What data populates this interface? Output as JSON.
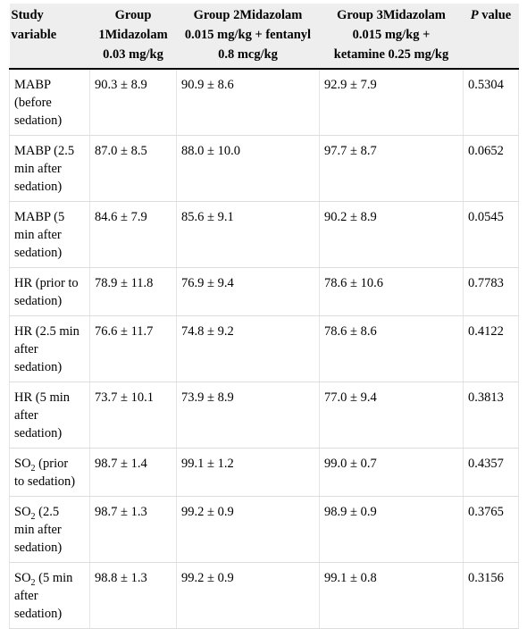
{
  "headers": [
    {
      "lines": [
        "Study",
        "variable"
      ]
    },
    {
      "lines": [
        "Group",
        "1Midazolam",
        "0.03 mg/kg"
      ]
    },
    {
      "lines": [
        "Group 2Midazolam",
        "0.015 mg/kg + fentanyl",
        "0.8 mcg/kg"
      ]
    },
    {
      "lines": [
        "Group 3Midazolam",
        "0.015 mg/kg +",
        "ketamine 0.25 mg/kg"
      ]
    },
    {
      "p_letter": "P",
      "rest": " value"
    }
  ],
  "rows": [
    {
      "variable": {
        "lines": [
          "MABP",
          "(before",
          "sedation)"
        ]
      },
      "g1": "90.3 ± 8.9",
      "g2": "90.9 ± 8.6",
      "g3": "92.9 ± 7.9",
      "p": "0.5304"
    },
    {
      "variable": {
        "lines": [
          "MABP (2.5",
          "min after",
          "sedation)"
        ]
      },
      "g1": "87.0 ± 8.5",
      "g2": "88.0 ± 10.0",
      "g3": "97.7 ± 8.7",
      "p": "0.0652"
    },
    {
      "variable": {
        "lines": [
          "MABP (5",
          "min after",
          "sedation)"
        ]
      },
      "g1": "84.6 ± 7.9",
      "g2": "85.6 ± 9.1",
      "g3": "90.2 ± 8.9",
      "p": "0.0545"
    },
    {
      "variable": {
        "lines": [
          "HR (prior to",
          "sedation)"
        ]
      },
      "g1": "78.9 ± 11.8",
      "g2": "76.9 ± 9.4",
      "g3": "78.6 ± 10.6",
      "p": "0.7783"
    },
    {
      "variable": {
        "lines": [
          "HR (2.5 min",
          "after",
          "sedation)"
        ]
      },
      "g1": "76.6 ± 11.7",
      "g2": "74.8 ± 9.2",
      "g3": "78.6 ± 8.6",
      "p": "0.4122"
    },
    {
      "variable": {
        "lines": [
          "HR (5 min",
          "after",
          "sedation)"
        ]
      },
      "g1": "73.7 ± 10.1",
      "g2": "73.9 ± 8.9",
      "g3": "77.0 ± 9.4",
      "p": "0.3813"
    },
    {
      "variable": {
        "so2": true,
        "base": "SO",
        "sub": "2",
        "first_rest": " (prior",
        "lines": [
          "to sedation)"
        ]
      },
      "g1": "98.7 ± 1.4",
      "g2": "99.1 ± 1.2",
      "g3": "99.0 ± 0.7",
      "p": "0.4357"
    },
    {
      "variable": {
        "so2": true,
        "base": "SO",
        "sub": "2",
        "first_rest": " (2.5",
        "lines": [
          "min after",
          "sedation)"
        ]
      },
      "g1": "98.7 ± 1.3",
      "g2": "99.2 ± 0.9",
      "g3": "98.9 ± 0.9",
      "p": "0.3765"
    },
    {
      "variable": {
        "so2": true,
        "base": "SO",
        "sub": "2",
        "first_rest": " (5 min",
        "lines": [
          "after",
          "sedation)"
        ]
      },
      "g1": "98.8 ± 1.3",
      "g2": "99.2 ± 0.9",
      "g3": "99.1 ± 0.8",
      "p": "0.3156"
    }
  ]
}
